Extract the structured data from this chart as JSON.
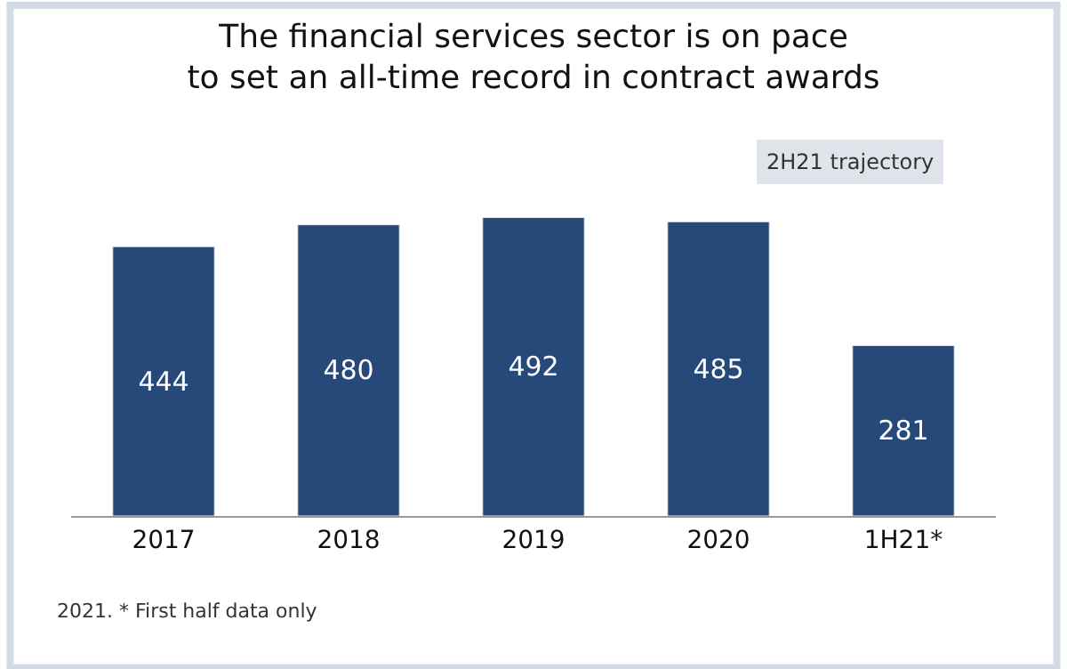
{
  "chart_data": {
    "type": "bar",
    "title": "The financial services sector is on pace\nto set an all-time record in contract awards",
    "categories": [
      "2017",
      "2018",
      "2019",
      "2020",
      "1H21*"
    ],
    "values": [
      444,
      480,
      492,
      485,
      281
    ],
    "color": "#26497a",
    "data_labels": true,
    "legend": false,
    "tick_labels": "x",
    "annotations": [
      "2H21 trajectory",
      "2021. * First half data only"
    ]
  }
}
